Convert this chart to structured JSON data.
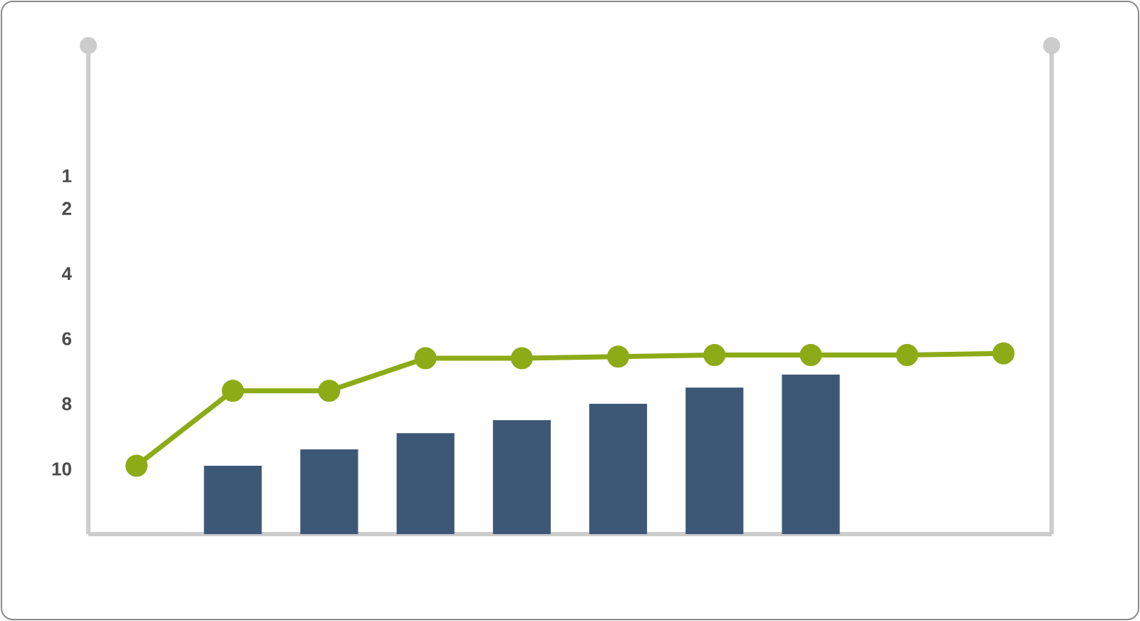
{
  "chart_data": {
    "type": "bar",
    "categories": [
      null,
      null,
      null,
      null,
      null,
      null,
      null,
      null,
      null,
      null
    ],
    "series": [
      {
        "type": "bar",
        "color": "#3d5877",
        "base": [
          null,
          12,
          12,
          12,
          12,
          12,
          12,
          12,
          null,
          null
        ],
        "values": [
          null,
          -2.1,
          -2.6,
          -3.1,
          -3.5,
          -4.0,
          -4.5,
          -4.9,
          null,
          null
        ]
      },
      {
        "type": "line",
        "color": "#8cab17",
        "values": [
          9.9,
          7.6,
          7.6,
          6.6,
          6.6,
          6.55,
          6.5,
          6.5,
          6.5,
          6.45
        ]
      }
    ],
    "ylim": [
      12,
      -3
    ],
    "yticks": [
      1,
      2,
      4,
      6,
      8,
      10
    ],
    "marker": "circle",
    "line_style": "solid"
  }
}
